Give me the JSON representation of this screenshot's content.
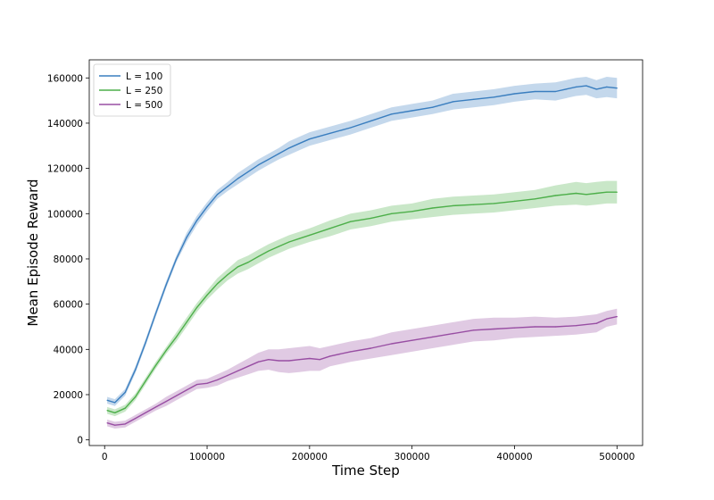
{
  "chart_data": {
    "type": "line",
    "title": "",
    "xlabel": "Time Step",
    "ylabel": "Mean Episode Reward",
    "xlim": [
      -15000,
      525000
    ],
    "ylim": [
      -2500,
      168000
    ],
    "xticks": [
      0,
      100000,
      200000,
      300000,
      400000,
      500000
    ],
    "xtick_labels": [
      "0",
      "100000",
      "200000",
      "300000",
      "400000",
      "500000"
    ],
    "yticks": [
      0,
      20000,
      40000,
      60000,
      80000,
      100000,
      120000,
      140000,
      160000
    ],
    "ytick_labels": [
      "0",
      "20000",
      "40000",
      "60000",
      "80000",
      "100000",
      "120000",
      "140000",
      "160000"
    ],
    "grid": false,
    "legend_position": "top-left",
    "series": [
      {
        "name": "L = 100",
        "color": "#3a7ebf",
        "x": [
          2500,
          10000,
          20000,
          30000,
          40000,
          50000,
          60000,
          70000,
          80000,
          90000,
          100000,
          110000,
          120000,
          130000,
          140000,
          150000,
          160000,
          170000,
          180000,
          190000,
          200000,
          220000,
          240000,
          260000,
          280000,
          300000,
          320000,
          340000,
          360000,
          380000,
          400000,
          420000,
          440000,
          460000,
          470000,
          480000,
          490000,
          500000
        ],
        "y": [
          17500,
          16500,
          21000,
          31000,
          43000,
          56000,
          68500,
          80000,
          89500,
          97000,
          103000,
          108500,
          112000,
          115500,
          118500,
          121500,
          124000,
          126500,
          129000,
          131000,
          133000,
          135500,
          138000,
          141000,
          144000,
          145500,
          147000,
          149500,
          150500,
          151500,
          153000,
          154000,
          154000,
          156000,
          156500,
          155000,
          156000,
          155500
        ],
        "band": [
          1500,
          1500,
          1500,
          1500,
          1500,
          1500,
          1500,
          1500,
          2000,
          2000,
          2000,
          2000,
          2000,
          2500,
          2500,
          2500,
          2500,
          2500,
          3000,
          3000,
          3000,
          3000,
          3000,
          3000,
          3000,
          3000,
          3000,
          3500,
          3500,
          3500,
          3500,
          3500,
          4000,
          4000,
          4000,
          4000,
          4500,
          4500
        ]
      },
      {
        "name": "L = 250",
        "color": "#4daf4a",
        "x": [
          2500,
          10000,
          20000,
          30000,
          40000,
          50000,
          60000,
          70000,
          80000,
          90000,
          100000,
          110000,
          120000,
          130000,
          140000,
          150000,
          160000,
          170000,
          180000,
          190000,
          200000,
          220000,
          240000,
          260000,
          280000,
          300000,
          320000,
          340000,
          360000,
          380000,
          400000,
          420000,
          440000,
          460000,
          470000,
          480000,
          490000,
          500000
        ],
        "y": [
          13000,
          12000,
          14000,
          19000,
          26000,
          33000,
          39500,
          45500,
          52000,
          58500,
          64000,
          69000,
          73000,
          76500,
          78500,
          81000,
          83500,
          85500,
          87500,
          89000,
          90500,
          93500,
          96500,
          98000,
          100000,
          101000,
          102500,
          103500,
          104000,
          104500,
          105500,
          106500,
          108000,
          109000,
          108500,
          109000,
          109500,
          109500
        ],
        "band": [
          1500,
          1500,
          1500,
          1500,
          1500,
          1500,
          1500,
          2000,
          2000,
          2000,
          2000,
          2500,
          2500,
          3000,
          3000,
          3000,
          3000,
          3000,
          3000,
          3000,
          3000,
          3500,
          3500,
          3500,
          3500,
          3500,
          4000,
          4000,
          4000,
          4000,
          4000,
          4000,
          4500,
          5000,
          5000,
          5000,
          5000,
          5000
        ]
      },
      {
        "name": "L = 500",
        "color": "#984ea3",
        "x": [
          2500,
          10000,
          20000,
          30000,
          40000,
          50000,
          60000,
          70000,
          80000,
          90000,
          100000,
          110000,
          120000,
          130000,
          140000,
          150000,
          160000,
          170000,
          180000,
          190000,
          200000,
          210000,
          220000,
          240000,
          260000,
          280000,
          300000,
          320000,
          340000,
          360000,
          380000,
          400000,
          420000,
          440000,
          460000,
          480000,
          490000,
          500000
        ],
        "y": [
          7500,
          6500,
          7000,
          9500,
          12000,
          14500,
          17000,
          19500,
          22000,
          24500,
          25000,
          26500,
          28500,
          30500,
          32500,
          34500,
          35500,
          35000,
          35000,
          35500,
          36000,
          35500,
          37000,
          39000,
          40500,
          42500,
          44000,
          45500,
          47000,
          48500,
          49000,
          49500,
          50000,
          50000,
          50500,
          51500,
          53500,
          54500
        ],
        "band": [
          1500,
          1500,
          1500,
          1500,
          1500,
          1500,
          2000,
          2000,
          2000,
          2000,
          2000,
          2500,
          2500,
          3000,
          3500,
          4000,
          4500,
          5000,
          5500,
          5500,
          5500,
          5000,
          4500,
          4500,
          4500,
          5000,
          5000,
          5000,
          5000,
          5000,
          5000,
          4500,
          4500,
          4000,
          4000,
          4000,
          3500,
          3500
        ]
      }
    ]
  }
}
